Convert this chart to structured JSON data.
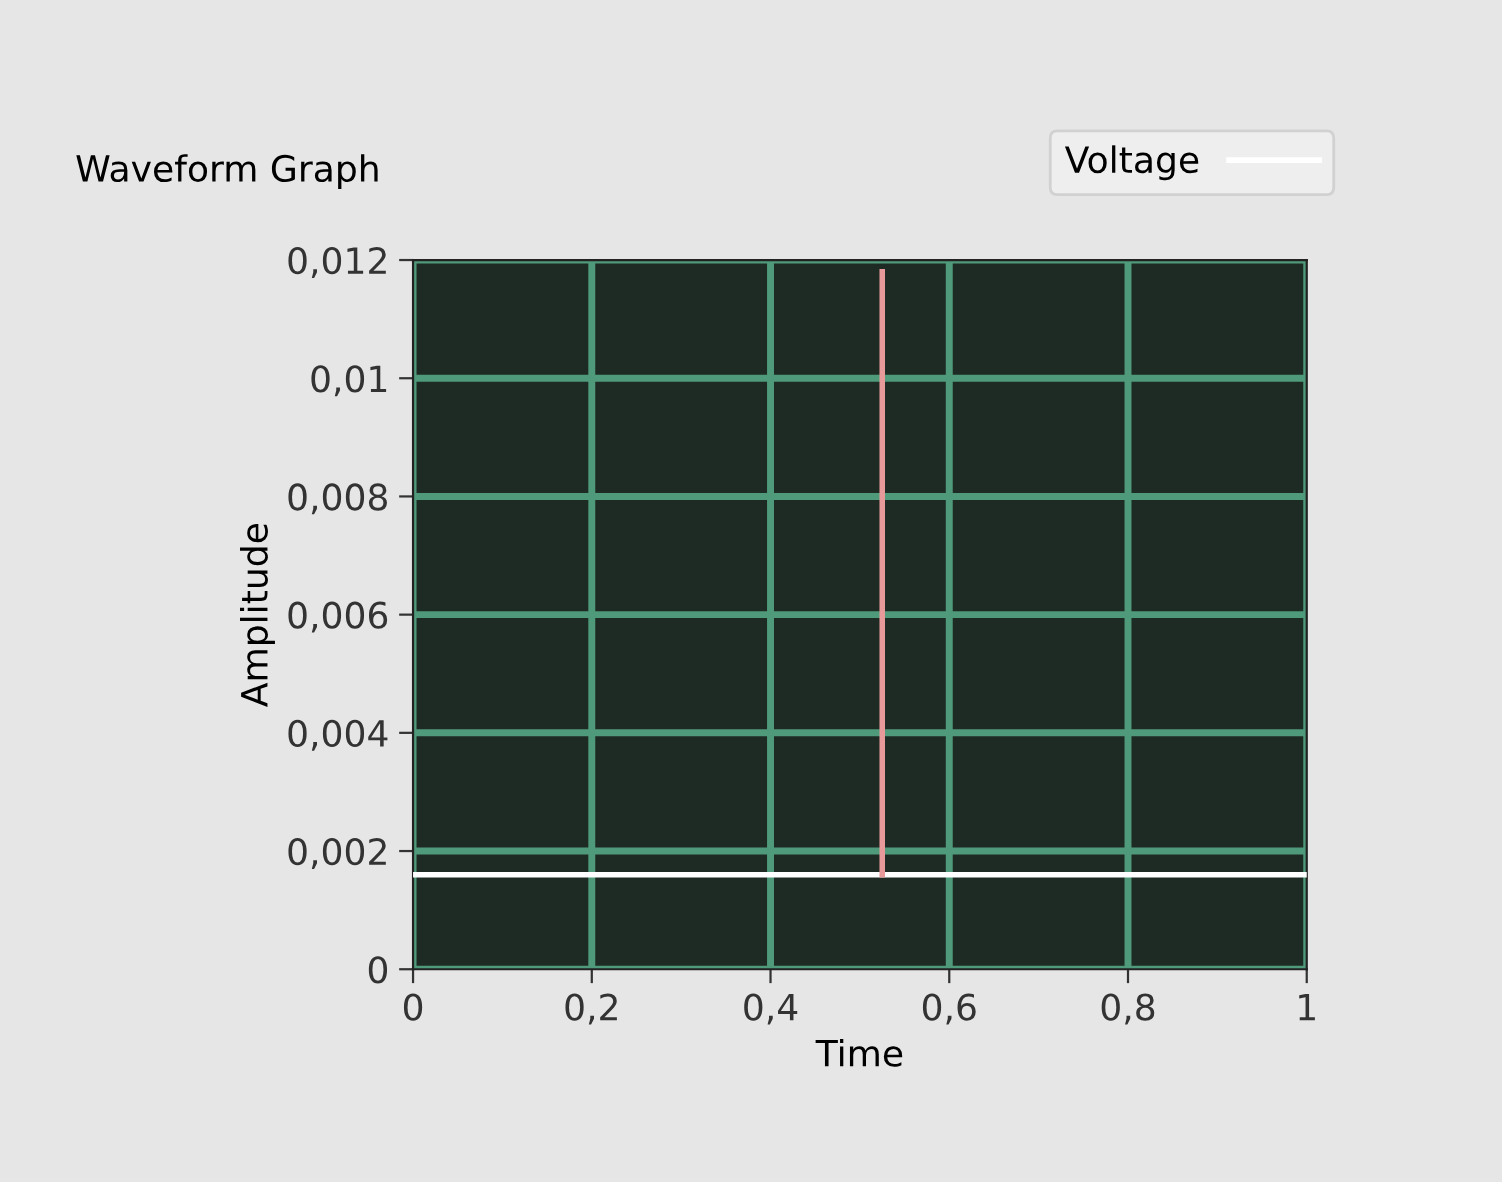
{
  "chart_data": {
    "type": "line",
    "title": "Waveform Graph",
    "xlabel": "Time",
    "ylabel": "Amplitude",
    "series": [
      {
        "name": "Voltage",
        "color": "#ffffff",
        "x": [
          0,
          0.525,
          1
        ],
        "values": [
          0.0016,
          0.0016,
          0.0016
        ]
      },
      {
        "color": "#e89a9a",
        "x": [
          0.525,
          0.525
        ],
        "values": [
          0.0016,
          0.0118
        ]
      }
    ],
    "xlim": [
      0,
      1
    ],
    "ylim": [
      0,
      0.012
    ],
    "xticks": [
      0,
      {
        "value": 0.2,
        "label": "0,2"
      },
      {
        "value": 0.4,
        "label": "0,4"
      },
      {
        "value": 0.6,
        "label": "0,6"
      },
      {
        "value": 0.8,
        "label": "0,8"
      },
      1
    ],
    "yticks": [
      0,
      {
        "value": 0.002,
        "label": "0,002"
      },
      {
        "value": 0.004,
        "label": "0,004"
      },
      {
        "value": 0.006,
        "label": "0,006"
      },
      {
        "value": 0.008,
        "label": "0,008"
      },
      {
        "value": 0.01,
        "label": "0,01"
      },
      {
        "value": 0.012,
        "label": "0,012"
      }
    ],
    "grid": true,
    "legend": "top right",
    "marker": "none",
    "line_style": "solid"
  }
}
